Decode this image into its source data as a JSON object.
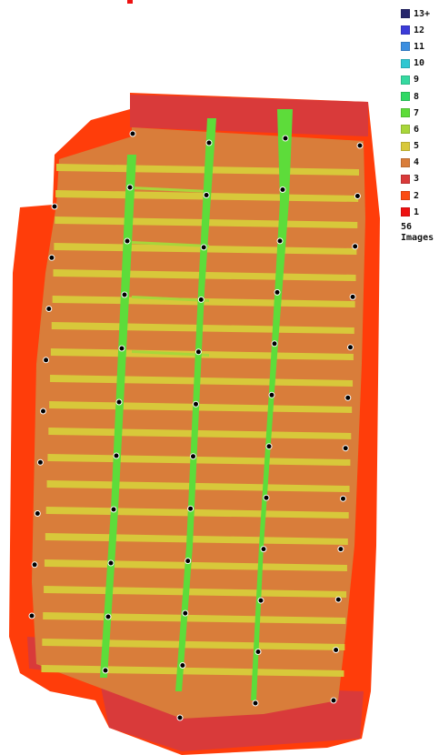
{
  "legend": {
    "items": [
      {
        "label": "13+",
        "color": "#25256b"
      },
      {
        "label": "12",
        "color": "#3b3bd8"
      },
      {
        "label": "11",
        "color": "#3b8ee0"
      },
      {
        "label": "10",
        "color": "#2ec7d2"
      },
      {
        "label": "9",
        "color": "#35d9a0"
      },
      {
        "label": "8",
        "color": "#2fd964"
      },
      {
        "label": "7",
        "color": "#5ddc3a"
      },
      {
        "label": "6",
        "color": "#a8d63a"
      },
      {
        "label": "5",
        "color": "#d8c83a"
      },
      {
        "label": "4",
        "color": "#d97d3a"
      },
      {
        "label": "3",
        "color": "#d93a3a"
      },
      {
        "label": "2",
        "color": "#fb4b12"
      },
      {
        "label": "1",
        "color": "#ee1111"
      }
    ],
    "count": "56",
    "count_label": "Images"
  },
  "colors": {
    "edge": "#ff3d0a",
    "band_red": "#d93a3a",
    "overlap4": "#d97d3a",
    "overlap5": "#d8c83a",
    "overlap6": "#a8d63a",
    "overlap7": "#5ddc3a",
    "camera": "#000000"
  }
}
